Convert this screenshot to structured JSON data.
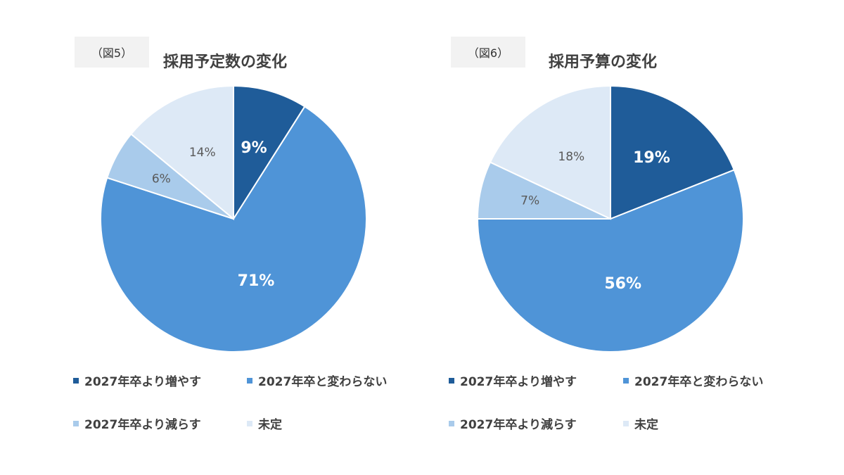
{
  "legend_labels": [
    "2027年卒より増やす",
    "2027年卒と変わらない",
    "2027年卒より減らす",
    "未定"
  ],
  "colors": [
    "#1f5c99",
    "#4f94d7",
    "#a9cbeb",
    "#dde9f6"
  ],
  "chart_data": [
    {
      "type": "pie",
      "figure_label": "（図5）",
      "title": "採用予定数の変化",
      "categories": [
        "2027年卒より増やす",
        "2027年卒と変わらない",
        "2027年卒より減らす",
        "未定"
      ],
      "values": [
        9,
        71,
        6,
        14
      ],
      "data_labels": [
        "9%",
        "71%",
        "6%",
        "14%"
      ]
    },
    {
      "type": "pie",
      "figure_label": "（図6）",
      "title": "採用予算の変化",
      "categories": [
        "2027年卒より増やす",
        "2027年卒と変わらない",
        "2027年卒より減らす",
        "未定"
      ],
      "values": [
        19,
        56,
        7,
        18
      ],
      "data_labels": [
        "19%",
        "56%",
        "7%",
        "18%"
      ]
    }
  ]
}
